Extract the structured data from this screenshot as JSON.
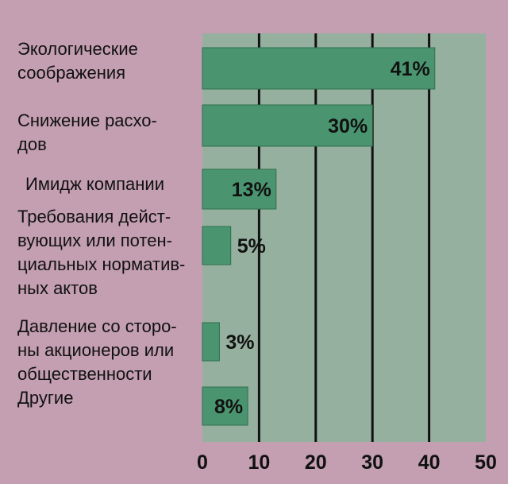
{
  "chart_data": {
    "type": "bar",
    "orientation": "horizontal",
    "categories": [
      [
        "Экологические",
        "соображения"
      ],
      [
        "Снижение расхо-",
        "дов"
      ],
      [
        "Имидж компании"
      ],
      [
        "Требования дейст-",
        "вующих или потен-",
        "циальных норматив-",
        "ных актов"
      ],
      [
        "Давление со сторо-",
        "ны акционеров или",
        "общественности"
      ],
      [
        "Другие"
      ]
    ],
    "values": [
      41,
      30,
      13,
      5,
      3,
      8
    ],
    "value_labels": [
      "41%",
      "30%",
      "13%",
      "5%",
      "3%",
      "8%"
    ],
    "xlim": [
      0,
      50
    ],
    "xticks": [
      0,
      10,
      20,
      30,
      40,
      50
    ],
    "xtick_labels": [
      "0",
      "10",
      "20",
      "30",
      "40",
      "50"
    ],
    "grid": true,
    "colors": {
      "page_background": "#c39fb1",
      "plot_background": "#95b09e",
      "bar": "#4a9570",
      "bar_edge": "#2f6e4e",
      "grid": "#111111",
      "text": "#111111"
    }
  }
}
